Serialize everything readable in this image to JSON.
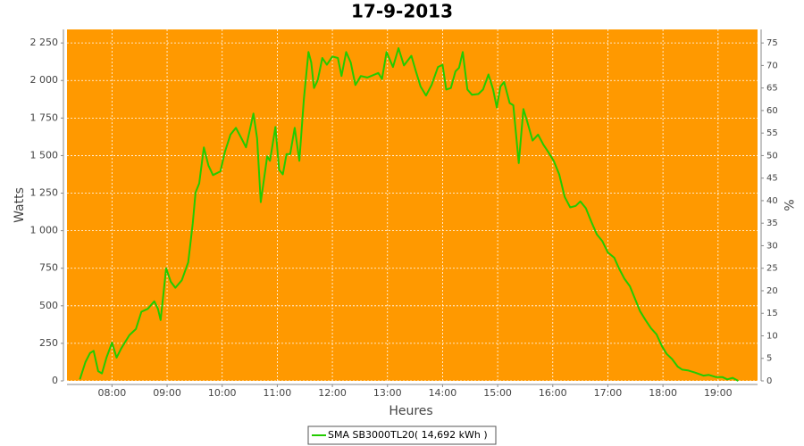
{
  "chart_data": {
    "type": "line",
    "title": "17-9-2013",
    "x_label": "Heures",
    "y_label": "Watts",
    "y2_label": "%",
    "background": "#ff9900",
    "grid": true,
    "legend": "bottom",
    "x": [
      "07:25",
      "07:31",
      "07:36",
      "07:40",
      "07:45",
      "07:49",
      "07:54",
      "08:00",
      "08:05",
      "08:10",
      "08:19",
      "08:26",
      "08:32",
      "08:39",
      "08:46",
      "08:50",
      "08:53",
      "08:59",
      "09:04",
      "09:09",
      "09:16",
      "09:23",
      "09:28",
      "09:31",
      "09:35",
      "09:40",
      "09:45",
      "09:50",
      "09:58",
      "10:03",
      "10:09",
      "10:15",
      "10:21",
      "10:26",
      "10:34",
      "10:38",
      "10:42",
      "10:49",
      "10:52",
      "10:58",
      "11:02",
      "11:06",
      "11:10",
      "11:14",
      "11:19",
      "11:24",
      "11:29",
      "11:34",
      "11:37",
      "11:40",
      "11:44",
      "11:49",
      "11:54",
      "12:00",
      "12:06",
      "12:10",
      "12:15",
      "12:20",
      "12:25",
      "12:31",
      "12:38",
      "12:44",
      "12:50",
      "12:54",
      "12:59",
      "13:06",
      "13:12",
      "13:18",
      "13:26",
      "13:31",
      "13:36",
      "13:42",
      "13:48",
      "13:55",
      "14:00",
      "14:04",
      "14:09",
      "14:14",
      "14:18",
      "14:22",
      "14:27",
      "14:32",
      "14:39",
      "14:44",
      "14:50",
      "14:55",
      "14:59",
      "15:03",
      "15:07",
      "15:13",
      "15:17",
      "15:23",
      "15:28",
      "15:32",
      "15:38",
      "15:44",
      "15:50",
      "15:55",
      "16:01",
      "16:07",
      "16:13",
      "16:19",
      "16:25",
      "16:30",
      "16:36",
      "16:42",
      "16:48",
      "16:54",
      "17:00",
      "17:07",
      "17:12",
      "17:18",
      "17:24",
      "17:30",
      "17:35",
      "17:41",
      "17:47",
      "17:53",
      "17:59",
      "18:04",
      "18:10",
      "18:16",
      "18:21",
      "18:27",
      "18:35",
      "18:44",
      "18:50",
      "18:58",
      "19:05",
      "19:10",
      "19:16",
      "19:22"
    ],
    "series": [
      {
        "name": "SMA SB3000TL20( 14,692 kWh )",
        "color": "#22cc00",
        "values": [
          10,
          125,
          185,
          200,
          65,
          50,
          155,
          255,
          155,
          215,
          305,
          345,
          460,
          480,
          530,
          480,
          405,
          750,
          660,
          620,
          670,
          790,
          1050,
          1255,
          1315,
          1555,
          1435,
          1370,
          1395,
          1525,
          1640,
          1685,
          1615,
          1555,
          1780,
          1615,
          1190,
          1495,
          1465,
          1690,
          1405,
          1375,
          1510,
          1510,
          1685,
          1465,
          1880,
          2190,
          2120,
          1950,
          2000,
          2150,
          2105,
          2160,
          2150,
          2030,
          2190,
          2120,
          1970,
          2030,
          2020,
          2035,
          2050,
          2010,
          2190,
          2090,
          2215,
          2100,
          2165,
          2060,
          1960,
          1900,
          1970,
          2090,
          2105,
          1940,
          1950,
          2060,
          2085,
          2190,
          1940,
          1905,
          1910,
          1940,
          2040,
          1940,
          1820,
          1960,
          1990,
          1850,
          1835,
          1450,
          1810,
          1730,
          1600,
          1640,
          1570,
          1525,
          1465,
          1375,
          1225,
          1155,
          1165,
          1195,
          1150,
          1060,
          975,
          930,
          855,
          820,
          750,
          680,
          630,
          540,
          465,
          405,
          350,
          310,
          230,
          180,
          145,
          95,
          75,
          70,
          55,
          35,
          40,
          25,
          25,
          10,
          20,
          0
        ]
      }
    ],
    "xlim": [
      "07:11",
      "19:43"
    ],
    "xticks": [
      "08:00",
      "09:00",
      "10:00",
      "11:00",
      "12:00",
      "13:00",
      "14:00",
      "15:00",
      "16:00",
      "17:00",
      "18:00",
      "19:00"
    ],
    "ylim": [
      0,
      2340
    ],
    "yticks": [
      0,
      250,
      500,
      750,
      {
        "value": 1000,
        "label": "1 000"
      },
      {
        "value": 1250,
        "label": "1 250"
      },
      {
        "value": 1500,
        "label": "1 500"
      },
      {
        "value": 1750,
        "label": "1 750"
      },
      {
        "value": 2000,
        "label": "2 000"
      },
      {
        "value": 2250,
        "label": "2 250"
      }
    ],
    "y2lim": [
      0,
      78
    ],
    "y2ticks": [
      0,
      5,
      10,
      15,
      20,
      25,
      30,
      35,
      40,
      45,
      50,
      55,
      60,
      65,
      70,
      75
    ]
  }
}
